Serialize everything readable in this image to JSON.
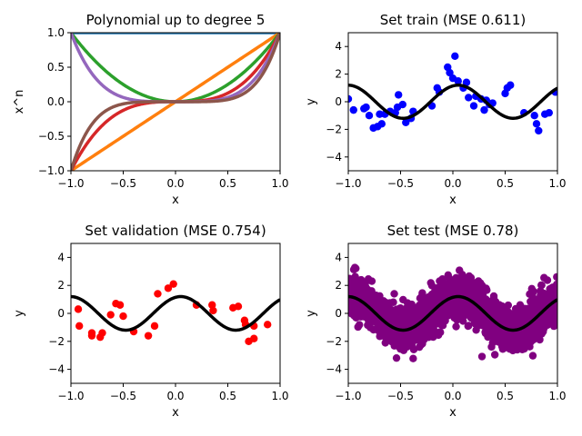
{
  "chart_data": [
    {
      "type": "line",
      "title": "Polynomial up to degree 5",
      "xlabel": "x",
      "ylabel": "x^n",
      "xlim": [
        -1,
        1
      ],
      "ylim": [
        -1,
        1
      ],
      "xticks": [
        "−1.0",
        "−0.5",
        "0.0",
        "0.5",
        "1.0"
      ],
      "yticks": [
        "−1.0",
        "−0.5",
        "0.0",
        "0.5",
        "1.0"
      ],
      "series": [
        {
          "degree": 0,
          "color": "#1f77b4"
        },
        {
          "degree": 1,
          "color": "#ff7f0e"
        },
        {
          "degree": 2,
          "color": "#2ca02c"
        },
        {
          "degree": 3,
          "color": "#d62728"
        },
        {
          "degree": 4,
          "color": "#9467bd"
        },
        {
          "degree": 5,
          "color": "#8c564b"
        }
      ]
    },
    {
      "type": "scatter",
      "title": "Set train (MSE 0.611)",
      "xlabel": "x",
      "ylabel": "y",
      "xlim": [
        -1,
        1
      ],
      "ylim": [
        -5,
        5
      ],
      "xticks": [
        "−1.0",
        "−0.5",
        "0.0",
        "0.5",
        "1.0"
      ],
      "yticks": [
        "−4",
        "−2",
        "0",
        "2",
        "4"
      ],
      "point_color": "#0000ff",
      "fit_color": "#000000",
      "points": [
        [
          -1.0,
          0.2
        ],
        [
          -0.95,
          -0.6
        ],
        [
          -0.85,
          -0.5
        ],
        [
          -0.83,
          -0.4
        ],
        [
          -0.8,
          -1.0
        ],
        [
          -0.76,
          -1.9
        ],
        [
          -0.72,
          -1.8
        ],
        [
          -0.7,
          -0.9
        ],
        [
          -0.68,
          -1.6
        ],
        [
          -0.65,
          -0.9
        ],
        [
          -0.6,
          -0.7
        ],
        [
          -0.55,
          -0.8
        ],
        [
          -0.53,
          -0.4
        ],
        [
          -0.52,
          0.5
        ],
        [
          -0.48,
          -0.2
        ],
        [
          -0.45,
          -1.5
        ],
        [
          -0.4,
          -1.2
        ],
        [
          -0.38,
          -0.7
        ],
        [
          -0.2,
          -0.3
        ],
        [
          -0.15,
          1.0
        ],
        [
          -0.13,
          0.7
        ],
        [
          -0.05,
          2.5
        ],
        [
          -0.03,
          2.1
        ],
        [
          0.0,
          1.7
        ],
        [
          0.02,
          3.3
        ],
        [
          0.05,
          1.5
        ],
        [
          0.1,
          1.0
        ],
        [
          0.13,
          1.4
        ],
        [
          0.15,
          0.3
        ],
        [
          0.2,
          -0.3
        ],
        [
          0.22,
          0.4
        ],
        [
          0.27,
          0.2
        ],
        [
          0.3,
          -0.6
        ],
        [
          0.32,
          0.1
        ],
        [
          0.35,
          -0.2
        ],
        [
          0.38,
          -0.1
        ],
        [
          0.5,
          0.6
        ],
        [
          0.52,
          1.0
        ],
        [
          0.55,
          1.2
        ],
        [
          0.68,
          -0.8
        ],
        [
          0.78,
          -1.0
        ],
        [
          0.8,
          -1.6
        ],
        [
          0.82,
          -2.1
        ],
        [
          0.88,
          -0.9
        ],
        [
          0.92,
          -0.8
        ],
        [
          0.98,
          0.7
        ]
      ]
    },
    {
      "type": "scatter",
      "title": "Set validation (MSE 0.754)",
      "xlabel": "x",
      "ylabel": "y",
      "xlim": [
        -1,
        1
      ],
      "ylim": [
        -5,
        5
      ],
      "xticks": [
        "−1.0",
        "−0.5",
        "0.0",
        "0.5",
        "1.0"
      ],
      "yticks": [
        "−4",
        "−2",
        "0",
        "2",
        "4"
      ],
      "point_color": "#ff0000",
      "fit_color": "#000000",
      "points": [
        [
          -0.93,
          0.3
        ],
        [
          -0.92,
          -0.9
        ],
        [
          -0.8,
          -1.4
        ],
        [
          -0.8,
          -1.6
        ],
        [
          -0.72,
          -1.7
        ],
        [
          -0.7,
          -1.4
        ],
        [
          -0.62,
          -0.1
        ],
        [
          -0.57,
          0.7
        ],
        [
          -0.53,
          0.6
        ],
        [
          -0.5,
          -0.2
        ],
        [
          -0.4,
          -1.3
        ],
        [
          -0.26,
          -1.6
        ],
        [
          -0.2,
          -0.9
        ],
        [
          -0.17,
          1.4
        ],
        [
          -0.07,
          1.8
        ],
        [
          -0.02,
          2.1
        ],
        [
          0.2,
          0.6
        ],
        [
          0.35,
          0.6
        ],
        [
          0.36,
          0.2
        ],
        [
          0.55,
          0.4
        ],
        [
          0.6,
          0.5
        ],
        [
          0.66,
          -0.5
        ],
        [
          0.67,
          -0.8
        ],
        [
          0.7,
          -2.0
        ],
        [
          0.75,
          -1.8
        ],
        [
          0.75,
          -0.9
        ],
        [
          0.88,
          -0.8
        ]
      ]
    },
    {
      "type": "scatter",
      "title": "Set test (MSE 0.78)",
      "xlabel": "x",
      "ylabel": "y",
      "xlim": [
        -1,
        1
      ],
      "ylim": [
        -5,
        5
      ],
      "xticks": [
        "−1.0",
        "−0.5",
        "0.0",
        "0.5",
        "1.0"
      ],
      "yticks": [
        "−4",
        "−2",
        "0",
        "2",
        "4"
      ],
      "point_color": "#800080",
      "fit_color": "#000000",
      "band_description": "dense point cloud following sin(2*pi*x)*~1.5 with spread about ±1.5"
    }
  ]
}
